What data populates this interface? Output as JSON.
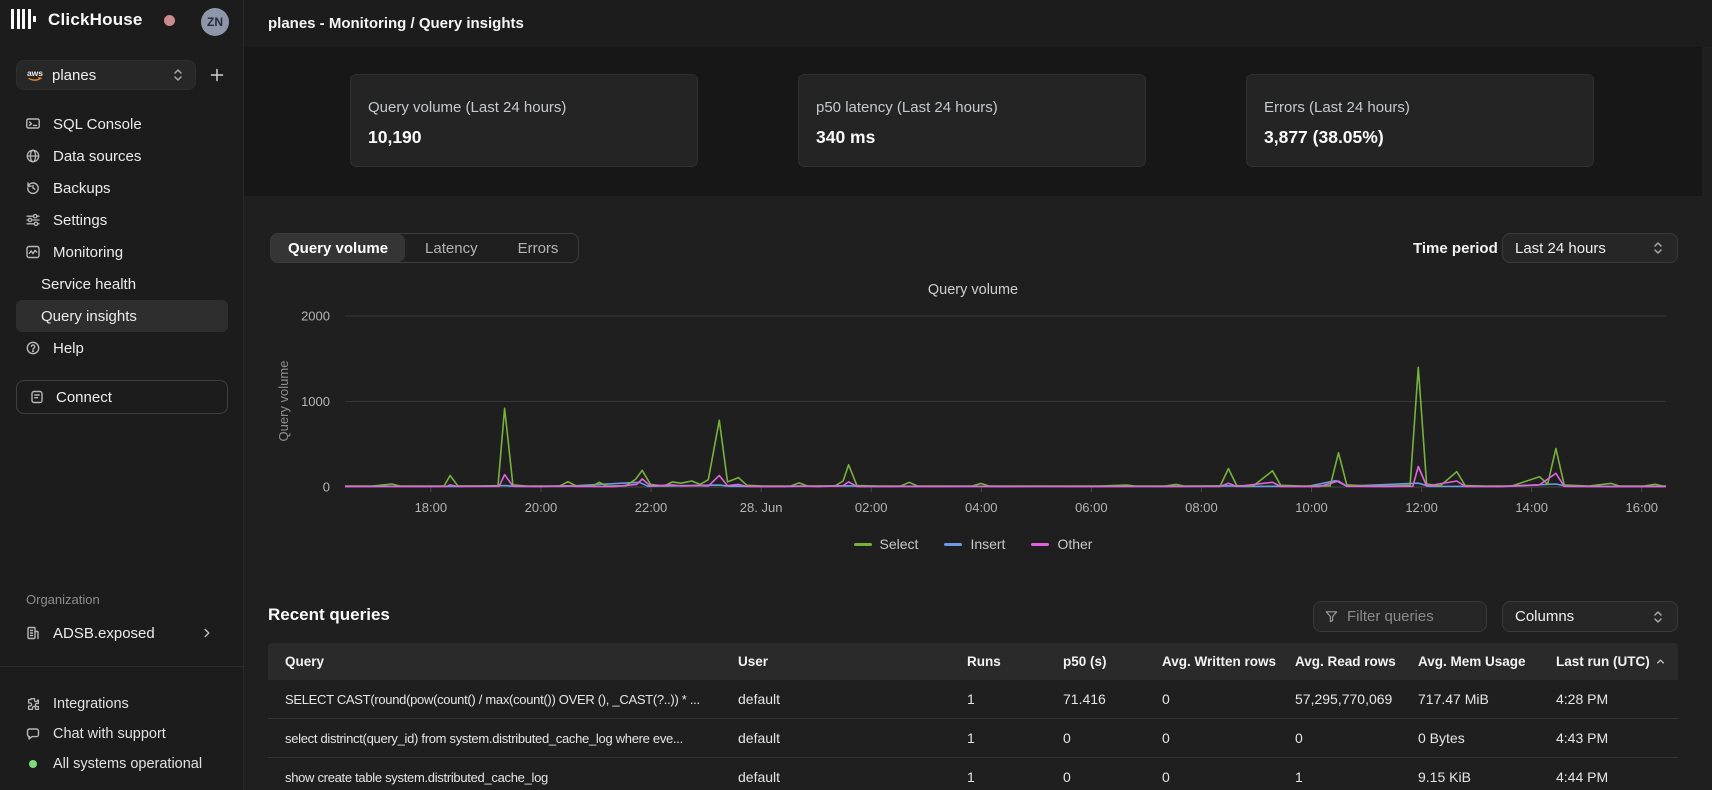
{
  "sidebar": {
    "brand": "ClickHouse",
    "avatar_initials": "ZN",
    "service_selector": {
      "value": "planes",
      "provider": "aws"
    },
    "nav": [
      {
        "label": "SQL Console",
        "icon": "console"
      },
      {
        "label": "Data sources",
        "icon": "data-sources"
      },
      {
        "label": "Backups",
        "icon": "backups"
      },
      {
        "label": "Settings",
        "icon": "settings"
      },
      {
        "label": "Monitoring",
        "icon": "monitoring"
      },
      {
        "label": "Service health",
        "sub": true
      },
      {
        "label": "Query insights",
        "sub": true,
        "active": true
      },
      {
        "label": "Help",
        "icon": "help"
      }
    ],
    "connect_label": "Connect",
    "organization": {
      "section_label": "Organization",
      "name": "ADSB.exposed"
    },
    "footer": [
      {
        "label": "Integrations",
        "icon": "puzzle"
      },
      {
        "label": "Chat with support",
        "icon": "chat"
      },
      {
        "label": "All systems operational",
        "icon": "status-dot"
      }
    ]
  },
  "header": {
    "breadcrumb": "planes - Monitoring / Query insights"
  },
  "stats_cards": [
    {
      "label": "Query volume (Last 24 hours)",
      "value": "10,190"
    },
    {
      "label": "p50 latency (Last 24 hours)",
      "value": "340 ms"
    },
    {
      "label": "Errors (Last 24 hours)",
      "value": "3,877 (38.05%)"
    }
  ],
  "tabs": [
    {
      "label": "Query volume",
      "active": true
    },
    {
      "label": "Latency",
      "active": false
    },
    {
      "label": "Errors",
      "active": false
    }
  ],
  "time_period": {
    "label": "Time period",
    "value": "Last 24 hours"
  },
  "chart_data": {
    "type": "line",
    "title": "Query volume",
    "ylabel": "Query volume",
    "ylim": [
      0,
      2000
    ],
    "yticks": [
      0,
      1000,
      2000
    ],
    "xticks": [
      "18:00",
      "20:00",
      "22:00",
      "28. Jun",
      "02:00",
      "04:00",
      "06:00",
      "08:00",
      "10:00",
      "12:00",
      "14:00",
      "16:00"
    ],
    "x_first_tick_hour": 1.56,
    "x_tick_interval_hours": 2,
    "x_span_hours": 24,
    "grid": true,
    "legend_position": "bottom",
    "colors": {
      "Select": "#77b23e",
      "Insert": "#6b9be6",
      "Other": "#e064dc"
    },
    "series": [
      {
        "name": "Select",
        "points": [
          [
            0,
            12
          ],
          [
            0.5,
            10
          ],
          [
            0.85,
            35
          ],
          [
            1.0,
            12
          ],
          [
            1.55,
            10
          ],
          [
            1.8,
            12
          ],
          [
            1.91,
            135
          ],
          [
            2.05,
            14
          ],
          [
            2.4,
            12
          ],
          [
            2.78,
            12
          ],
          [
            2.9,
            920
          ],
          [
            3.05,
            25
          ],
          [
            3.3,
            12
          ],
          [
            3.9,
            10
          ],
          [
            4.05,
            62
          ],
          [
            4.2,
            12
          ],
          [
            4.5,
            12
          ],
          [
            4.62,
            55
          ],
          [
            4.75,
            12
          ],
          [
            5.1,
            14
          ],
          [
            5.28,
            90
          ],
          [
            5.4,
            195
          ],
          [
            5.55,
            30
          ],
          [
            5.8,
            12
          ],
          [
            5.95,
            60
          ],
          [
            6.1,
            45
          ],
          [
            6.3,
            70
          ],
          [
            6.45,
            30
          ],
          [
            6.6,
            85
          ],
          [
            6.8,
            780
          ],
          [
            6.95,
            60
          ],
          [
            7.15,
            110
          ],
          [
            7.3,
            20
          ],
          [
            7.6,
            10
          ],
          [
            8.1,
            12
          ],
          [
            8.25,
            48
          ],
          [
            8.4,
            12
          ],
          [
            8.9,
            10
          ],
          [
            9.05,
            70
          ],
          [
            9.15,
            260
          ],
          [
            9.3,
            18
          ],
          [
            9.7,
            10
          ],
          [
            10.1,
            12
          ],
          [
            10.25,
            55
          ],
          [
            10.4,
            12
          ],
          [
            10.9,
            10
          ],
          [
            11.4,
            12
          ],
          [
            11.55,
            42
          ],
          [
            11.7,
            12
          ],
          [
            12.2,
            10
          ],
          [
            12.7,
            12
          ],
          [
            13.2,
            10
          ],
          [
            13.7,
            12
          ],
          [
            14.2,
            22
          ],
          [
            14.35,
            10
          ],
          [
            14.9,
            10
          ],
          [
            15.1,
            30
          ],
          [
            15.25,
            10
          ],
          [
            15.9,
            12
          ],
          [
            16.05,
            215
          ],
          [
            16.2,
            18
          ],
          [
            16.5,
            12
          ],
          [
            16.85,
            190
          ],
          [
            17.0,
            20
          ],
          [
            17.4,
            10
          ],
          [
            17.9,
            14
          ],
          [
            18.05,
            400
          ],
          [
            18.2,
            25
          ],
          [
            18.6,
            12
          ],
          [
            19.0,
            12
          ],
          [
            19.35,
            20
          ],
          [
            19.5,
            1400
          ],
          [
            19.65,
            35
          ],
          [
            19.9,
            14
          ],
          [
            20.2,
            180
          ],
          [
            20.35,
            18
          ],
          [
            20.7,
            10
          ],
          [
            21.2,
            12
          ],
          [
            21.7,
            120
          ],
          [
            21.85,
            35
          ],
          [
            22.0,
            450
          ],
          [
            22.15,
            22
          ],
          [
            22.6,
            12
          ],
          [
            23.0,
            42
          ],
          [
            23.15,
            12
          ],
          [
            23.6,
            10
          ],
          [
            23.8,
            32
          ],
          [
            23.95,
            10
          ],
          [
            24,
            10
          ]
        ]
      },
      {
        "name": "Insert",
        "points": [
          [
            0,
            7
          ],
          [
            1,
            8
          ],
          [
            2,
            7
          ],
          [
            2.9,
            18
          ],
          [
            3.1,
            7
          ],
          [
            4,
            8
          ],
          [
            5.35,
            55
          ],
          [
            5.5,
            9
          ],
          [
            6.8,
            22
          ],
          [
            7.0,
            8
          ],
          [
            8,
            7
          ],
          [
            9.15,
            14
          ],
          [
            9.4,
            7
          ],
          [
            10.5,
            8
          ],
          [
            12,
            7
          ],
          [
            13.5,
            8
          ],
          [
            15,
            7
          ],
          [
            16.05,
            14
          ],
          [
            16.3,
            7
          ],
          [
            17.5,
            8
          ],
          [
            18.0,
            75
          ],
          [
            18.2,
            9
          ],
          [
            19.5,
            45
          ],
          [
            19.7,
            8
          ],
          [
            21,
            7
          ],
          [
            22.0,
            35
          ],
          [
            22.2,
            8
          ],
          [
            23.5,
            7
          ],
          [
            24,
            7
          ]
        ]
      },
      {
        "name": "Other",
        "points": [
          [
            0,
            5
          ],
          [
            0.7,
            6
          ],
          [
            1.4,
            5
          ],
          [
            1.85,
            8
          ],
          [
            1.91,
            25
          ],
          [
            2.05,
            6
          ],
          [
            2.8,
            8
          ],
          [
            2.9,
            145
          ],
          [
            3.05,
            10
          ],
          [
            3.5,
            5
          ],
          [
            4.05,
            14
          ],
          [
            4.2,
            6
          ],
          [
            4.9,
            5
          ],
          [
            5.3,
            30
          ],
          [
            5.4,
            95
          ],
          [
            5.55,
            10
          ],
          [
            5.95,
            25
          ],
          [
            6.1,
            12
          ],
          [
            6.45,
            18
          ],
          [
            6.6,
            10
          ],
          [
            6.8,
            135
          ],
          [
            6.95,
            15
          ],
          [
            7.15,
            30
          ],
          [
            7.3,
            6
          ],
          [
            7.9,
            5
          ],
          [
            8.25,
            10
          ],
          [
            8.6,
            5
          ],
          [
            9.05,
            15
          ],
          [
            9.15,
            60
          ],
          [
            9.3,
            6
          ],
          [
            9.9,
            5
          ],
          [
            10.25,
            8
          ],
          [
            10.7,
            5
          ],
          [
            11.55,
            8
          ],
          [
            11.9,
            5
          ],
          [
            12.6,
            6
          ],
          [
            13.4,
            5
          ],
          [
            14.2,
            6
          ],
          [
            15.1,
            6
          ],
          [
            15.9,
            6
          ],
          [
            16.05,
            45
          ],
          [
            16.2,
            6
          ],
          [
            16.85,
            55
          ],
          [
            17.0,
            6
          ],
          [
            17.7,
            5
          ],
          [
            18.05,
            70
          ],
          [
            18.2,
            8
          ],
          [
            18.9,
            5
          ],
          [
            19.4,
            8
          ],
          [
            19.5,
            240
          ],
          [
            19.65,
            12
          ],
          [
            20.2,
            70
          ],
          [
            20.35,
            7
          ],
          [
            21.0,
            5
          ],
          [
            21.7,
            25
          ],
          [
            22.0,
            160
          ],
          [
            22.15,
            8
          ],
          [
            22.9,
            5
          ],
          [
            23.6,
            5
          ],
          [
            24,
            6
          ]
        ]
      }
    ]
  },
  "recent_queries": {
    "title": "Recent queries",
    "filter_placeholder": "Filter queries",
    "columns_label": "Columns",
    "table": {
      "headers": [
        "Query",
        "User",
        "Runs",
        "p50 (s)",
        "Avg. Written rows",
        "Avg. Read rows",
        "Avg. Mem Usage",
        "Last run (UTC)"
      ],
      "sort_column": "Last run (UTC)",
      "sort_direction": "asc",
      "rows": [
        [
          "SELECT CAST(round(pow(count() / max(count()) OVER (), _CAST(?..)) * ...",
          "default",
          "1",
          "71.416",
          "0",
          "57,295,770,069",
          "717.47 MiB",
          "4:28 PM"
        ],
        [
          "select distrinct(query_id) from system.distributed_cache_log where eve...",
          "default",
          "1",
          "0",
          "0",
          "0",
          "0 Bytes",
          "4:43 PM"
        ],
        [
          "show create table system.distributed_cache_log",
          "default",
          "1",
          "0",
          "0",
          "1",
          "9.15 KiB",
          "4:44 PM"
        ]
      ]
    }
  }
}
